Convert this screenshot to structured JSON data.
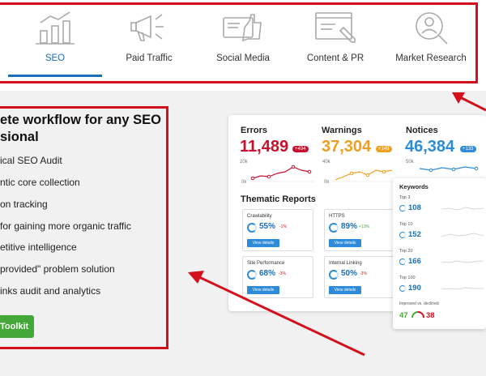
{
  "tabs": [
    {
      "label": "SEO",
      "icon": "bar-chart-icon",
      "active": true
    },
    {
      "label": "Paid Traffic",
      "icon": "megaphone-icon",
      "active": false
    },
    {
      "label": "Social Media",
      "icon": "thumbs-up-icon",
      "active": false
    },
    {
      "label": "Content & PR",
      "icon": "document-edit-icon",
      "active": false
    },
    {
      "label": "Market Research",
      "icon": "magnifier-person-icon",
      "active": false
    }
  ],
  "hero": {
    "heading": "ete workflow for any SEO sional",
    "features": [
      "ical SEO Audit",
      "ntic core collection",
      "on tracking",
      "for gaining more organic traffic",
      "etitive intelligence",
      "provided\" problem solution",
      "inks audit and analytics"
    ],
    "cta_label": "Toolkit"
  },
  "dashboard": {
    "metrics": [
      {
        "label": "Errors",
        "value": "11,489",
        "badge": "+494",
        "color": "#c8102e",
        "ticks": [
          "20k",
          "0k"
        ]
      },
      {
        "label": "Warnings",
        "value": "37,304",
        "badge": "+149",
        "color": "#f0a01e",
        "ticks": [
          "40k",
          "0k"
        ]
      },
      {
        "label": "Notices",
        "value": "46,384",
        "badge": "+133",
        "color": "#2d8bd9",
        "ticks": [
          "50k",
          "0k"
        ]
      }
    ],
    "thematic_title": "Thematic Reports",
    "cards": [
      {
        "name": "Crawlability",
        "pct": "55%",
        "delta": "-1%",
        "delta_color": "#d3101c",
        "button": "View details"
      },
      {
        "name": "HTTPS",
        "pct": "89%",
        "delta": "+13%",
        "delta_color": "#43a838",
        "button": "View details"
      },
      {
        "name": "Site Performance",
        "pct": "68%",
        "delta": "-3%",
        "delta_color": "#d3101c",
        "button": "View details"
      },
      {
        "name": "Internal Linking",
        "pct": "50%",
        "delta": "-3%",
        "delta_color": "#d3101c",
        "button": "View details"
      }
    ]
  },
  "keywords": {
    "title": "Keywords",
    "rows": [
      {
        "label": "Top 3",
        "value": "108"
      },
      {
        "label": "Top 10",
        "value": "152"
      },
      {
        "label": "Top 20",
        "value": "166"
      },
      {
        "label": "Top 100",
        "value": "190"
      }
    ],
    "improved_label": "Improved vs. declined",
    "improved": "47",
    "declined": "38"
  }
}
